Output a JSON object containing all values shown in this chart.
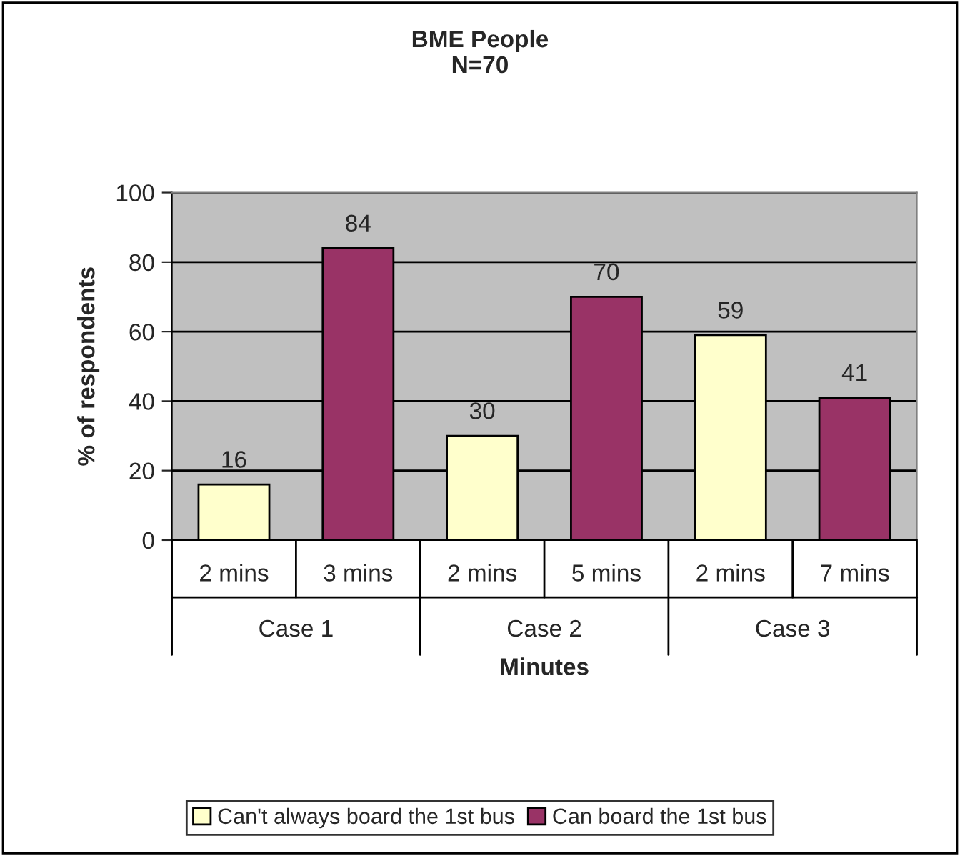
{
  "chart_data": {
    "type": "bar",
    "title": "BME People\nN=70",
    "xlabel": "Minutes",
    "ylabel": "% of respondents",
    "categories": [
      "2 mins",
      "3 mins",
      "2 mins",
      "5 mins",
      "2 mins",
      "7 mins"
    ],
    "series": [
      {
        "name": "Can't always board the 1st bus",
        "color": "#ffffcc",
        "values": [
          16,
          null,
          30,
          null,
          59,
          null
        ]
      },
      {
        "name": "Can board the 1st bus",
        "color": "#993366",
        "values": [
          null,
          84,
          null,
          70,
          null,
          41
        ]
      }
    ],
    "annotations": [
      "Case 1",
      "Case 2",
      "Case 3"
    ],
    "ylim": [
      0,
      100
    ],
    "yticks": [
      0,
      20,
      40,
      60,
      80,
      100
    ],
    "grid": "y",
    "legend": "bottom",
    "data_labels": true
  }
}
